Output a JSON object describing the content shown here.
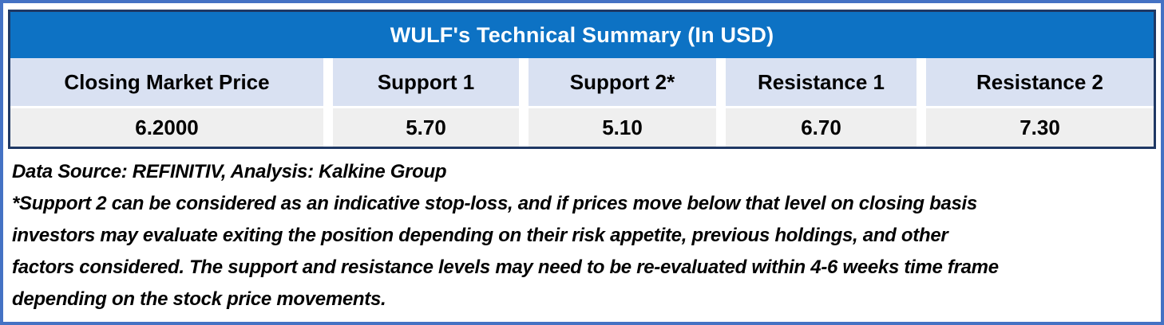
{
  "chart_data": {
    "type": "table",
    "title": "WULF's Technical Summary (In USD)",
    "columns": [
      "Closing Market Price",
      "Support 1",
      "Support 2*",
      "Resistance 1",
      "Resistance 2"
    ],
    "rows": [
      [
        "6.2000",
        "5.70",
        "5.10",
        "6.70",
        "7.30"
      ]
    ]
  },
  "notes": {
    "source_line": "Data Source: REFINITIV, Analysis: Kalkine Group",
    "disclaimer_lines": [
      "*Support 2 can be considered as an indicative stop-loss, and if prices move below that level on closing basis",
      "investors may evaluate exiting the position depending on their risk appetite, previous holdings, and other",
      "factors considered. The support and resistance levels may need to be re-evaluated within 4-6 weeks time frame",
      "depending on the stock price movements."
    ]
  },
  "colors": {
    "title_bar_blue": "#0D72C4",
    "header_row_lavender": "#D9E1F2",
    "value_row_gray": "#EFEFEF",
    "table_border_navy": "#1F3864",
    "outer_frame_blue": "#4472C4",
    "title_text": "#FFFFFF",
    "body_text": "#000000"
  }
}
